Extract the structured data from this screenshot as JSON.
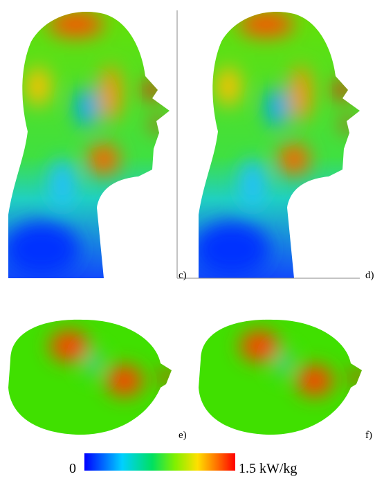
{
  "panels": [
    {
      "label": "c)"
    },
    {
      "label": "d)"
    },
    {
      "label": "e)"
    },
    {
      "label": "f)"
    }
  ],
  "colorbar": {
    "min_label": "0",
    "max_label": "1.5 kW/kg"
  }
}
